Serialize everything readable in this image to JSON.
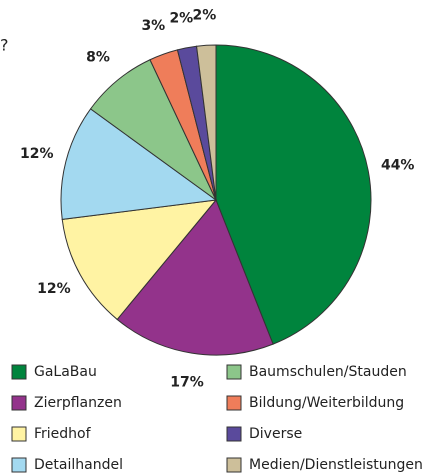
{
  "chart_data": {
    "type": "pie",
    "title": "?",
    "categories": [
      "GaLaBau",
      "Zierpflanzen",
      "Friedhof",
      "Detailhandel",
      "Baumschulen/Stauden",
      "Bildung/Weiterbildung",
      "Diverse",
      "Medien/Dienstleistungen"
    ],
    "values": [
      44,
      17,
      12,
      12,
      8,
      3,
      2,
      2
    ],
    "value_labels": [
      "44%",
      "17%",
      "12%",
      "12%",
      "8%",
      "3%",
      "2%",
      "2%"
    ],
    "colors": [
      "#00843d",
      "#93338b",
      "#fff3a3",
      "#a3d9f0",
      "#8cc68a",
      "#ef7d5a",
      "#5a4a9c",
      "#cdbf9a"
    ],
    "legend": "bottom"
  }
}
